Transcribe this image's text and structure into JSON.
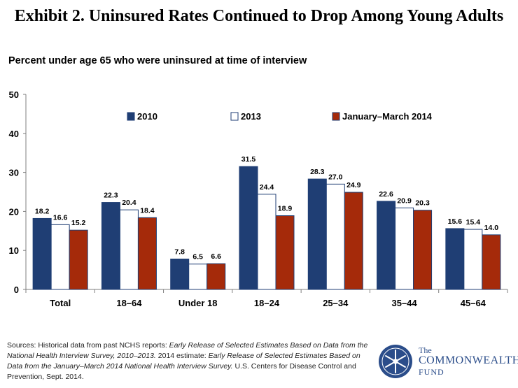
{
  "title": "Exhibit 2. Uninsured Rates Continued to Drop Among Young Adults",
  "subtitle": "Percent under age 65 who were uninsured at time of interview",
  "chart_data": {
    "type": "bar",
    "categories": [
      "Total",
      "18–64",
      "Under 18",
      "18–24",
      "25–34",
      "35–44",
      "45–64"
    ],
    "series": [
      {
        "name": "2010",
        "color": "#1f3e74",
        "values": [
          18.2,
          22.3,
          7.8,
          31.5,
          28.3,
          22.6,
          15.6
        ],
        "labels": [
          "18.2",
          "22.3",
          "7.8",
          "31.5",
          "28.3",
          "22.6",
          "15.6"
        ]
      },
      {
        "name": "2013",
        "color": "#ffffff",
        "values": [
          16.6,
          20.4,
          6.5,
          24.4,
          27.0,
          20.9,
          15.4
        ],
        "labels": [
          "16.6",
          "20.4",
          "6.5",
          "24.4",
          "27.0",
          "20.9",
          "15.4"
        ]
      },
      {
        "name": "January–March 2014",
        "color": "#a52a0a",
        "values": [
          15.2,
          18.4,
          6.6,
          18.9,
          24.9,
          20.3,
          14.0
        ],
        "labels": [
          "15.2",
          "18.4",
          "6.6",
          "18.9",
          "24.9",
          "20.3",
          "14.0"
        ]
      }
    ],
    "yticks": [
      "0",
      "10",
      "20",
      "30",
      "40",
      "50"
    ],
    "ylim": [
      0,
      50
    ],
    "legend_position": "top",
    "grid": false
  },
  "sources": {
    "prefix": "Sources: Historical data from past NCHS reports: ",
    "italic1": "Early Release of Selected Estimates Based on Data from the National Health Interview Survey, 2010–2013.",
    "middle": " 2014 estimate: ",
    "italic2": "Early Release of Selected Estimates Based on Data from the January–March 2014 National Health Interview Survey.",
    "suffix": " U.S. Centers for Disease Control and Prevention, Sept. 2014."
  },
  "logo": {
    "the": "The",
    "main": "COMMONWEALTH",
    "fund": "FUND"
  }
}
